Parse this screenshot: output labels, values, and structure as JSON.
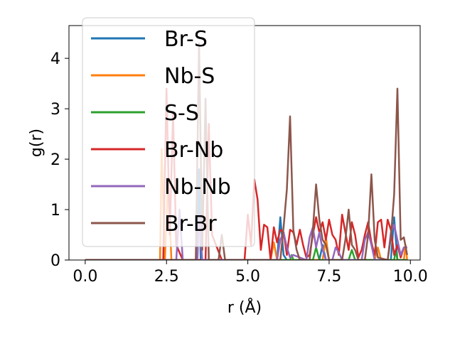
{
  "chart_data": {
    "type": "line",
    "xlabel": "r (Å)",
    "ylabel": "g(r)",
    "xlim": [
      -0.5,
      10.3
    ],
    "ylim": [
      0,
      4.65
    ],
    "xticks": [
      0.0,
      2.5,
      5.0,
      7.5,
      10.0
    ],
    "xtick_labels": [
      "0.0",
      "2.5",
      "5.0",
      "7.5",
      "10.0"
    ],
    "yticks": [
      0,
      1,
      2,
      3,
      4
    ],
    "ytick_labels": [
      "0",
      "1",
      "2",
      "3",
      "4"
    ],
    "grid": false,
    "legend_position": "top-left",
    "series": [
      {
        "name": "Br-S",
        "color": "#1f77b4",
        "points": [
          [
            0,
            0
          ],
          [
            3.45,
            0
          ],
          [
            3.5,
            1.8
          ],
          [
            3.55,
            0
          ],
          [
            5.9,
            0
          ],
          [
            6.0,
            0.85
          ],
          [
            6.1,
            0.1
          ],
          [
            6.2,
            0
          ],
          [
            7.2,
            0
          ],
          [
            7.3,
            0.3
          ],
          [
            7.4,
            0
          ],
          [
            9.4,
            0
          ],
          [
            9.5,
            0.85
          ],
          [
            9.6,
            0
          ],
          [
            9.9,
            0
          ]
        ]
      },
      {
        "name": "Nb-S",
        "color": "#ff7f0e",
        "points": [
          [
            0,
            0
          ],
          [
            2.3,
            0
          ],
          [
            2.35,
            2.2
          ],
          [
            2.45,
            0
          ],
          [
            2.55,
            1.6
          ],
          [
            2.65,
            0
          ],
          [
            5.7,
            0
          ],
          [
            5.8,
            0.35
          ],
          [
            5.9,
            0
          ],
          [
            7.3,
            0
          ],
          [
            7.4,
            0.45
          ],
          [
            7.5,
            0
          ],
          [
            8.9,
            0
          ],
          [
            9.0,
            0.25
          ],
          [
            9.1,
            0
          ],
          [
            9.8,
            0
          ],
          [
            9.85,
            0.3
          ],
          [
            9.9,
            0
          ]
        ]
      },
      {
        "name": "S-S",
        "color": "#2ca02c",
        "points": [
          [
            0,
            0
          ],
          [
            6.3,
            0
          ],
          [
            6.35,
            0.1
          ],
          [
            6.4,
            0
          ],
          [
            7.0,
            0
          ],
          [
            7.1,
            0.25
          ],
          [
            7.2,
            0
          ],
          [
            8.1,
            0
          ],
          [
            8.2,
            0.2
          ],
          [
            8.3,
            0
          ],
          [
            9.5,
            0
          ],
          [
            9.55,
            0.2
          ],
          [
            9.6,
            0
          ],
          [
            9.9,
            0
          ]
        ]
      },
      {
        "name": "Br-Nb",
        "color": "#d62728",
        "points": [
          [
            0,
            0
          ],
          [
            2.4,
            0
          ],
          [
            2.5,
            3.4
          ],
          [
            2.6,
            0.5
          ],
          [
            2.7,
            2.9
          ],
          [
            2.8,
            0.3
          ],
          [
            3.0,
            0
          ],
          [
            3.7,
            0
          ],
          [
            3.8,
            2.7
          ],
          [
            3.9,
            0.5
          ],
          [
            4.2,
            0
          ],
          [
            4.9,
            0
          ],
          [
            5.0,
            0.9
          ],
          [
            5.1,
            0.3
          ],
          [
            5.2,
            1.6
          ],
          [
            5.3,
            1.2
          ],
          [
            5.4,
            0.2
          ],
          [
            5.5,
            0.7
          ],
          [
            5.6,
            0.65
          ],
          [
            5.7,
            0
          ],
          [
            5.8,
            0.65
          ],
          [
            5.9,
            0.35
          ],
          [
            6.0,
            0.6
          ],
          [
            6.1,
            0.55
          ],
          [
            6.2,
            0.1
          ],
          [
            6.3,
            0.6
          ],
          [
            6.4,
            0.55
          ],
          [
            6.5,
            0.3
          ],
          [
            6.6,
            0.6
          ],
          [
            6.7,
            0.3
          ],
          [
            6.8,
            0.05
          ],
          [
            6.9,
            0.1
          ],
          [
            7.0,
            0.5
          ],
          [
            7.1,
            0.85
          ],
          [
            7.2,
            0.55
          ],
          [
            7.3,
            0.75
          ],
          [
            7.4,
            0.4
          ],
          [
            7.5,
            0.8
          ],
          [
            7.6,
            0.5
          ],
          [
            7.7,
            0.4
          ],
          [
            7.8,
            0.1
          ],
          [
            7.9,
            0.9
          ],
          [
            8.0,
            0.55
          ],
          [
            8.1,
            0.2
          ],
          [
            8.2,
            0.75
          ],
          [
            8.3,
            0.5
          ],
          [
            8.4,
            0.05
          ],
          [
            8.5,
            0.2
          ],
          [
            8.6,
            0.5
          ],
          [
            8.7,
            0.75
          ],
          [
            8.8,
            0.35
          ],
          [
            8.9,
            0.1
          ],
          [
            9.0,
            0.75
          ],
          [
            9.1,
            0.8
          ],
          [
            9.2,
            0.25
          ],
          [
            9.3,
            0.8
          ],
          [
            9.4,
            0.6
          ],
          [
            9.5,
            0.1
          ],
          [
            9.6,
            0.3
          ],
          [
            9.7,
            0.05
          ],
          [
            9.8,
            0.25
          ],
          [
            9.9,
            0.25
          ]
        ]
      },
      {
        "name": "Nb-Nb",
        "color": "#9467bd",
        "points": [
          [
            0,
            0
          ],
          [
            2.8,
            0
          ],
          [
            2.9,
            1.0
          ],
          [
            3.0,
            0
          ],
          [
            3.45,
            0
          ],
          [
            3.5,
            0.9
          ],
          [
            3.6,
            0
          ],
          [
            5.9,
            0
          ],
          [
            6.0,
            0.4
          ],
          [
            6.1,
            0.55
          ],
          [
            6.2,
            0.25
          ],
          [
            6.3,
            0.05
          ],
          [
            6.4,
            0.1
          ],
          [
            6.8,
            0
          ],
          [
            6.9,
            0.45
          ],
          [
            7.0,
            0.65
          ],
          [
            7.1,
            0.25
          ],
          [
            7.2,
            0.55
          ],
          [
            7.3,
            0.2
          ],
          [
            7.4,
            0
          ],
          [
            7.6,
            0
          ],
          [
            7.7,
            0.25
          ],
          [
            7.8,
            0.15
          ],
          [
            7.9,
            0
          ],
          [
            8.5,
            0
          ],
          [
            8.6,
            0.4
          ],
          [
            8.7,
            0.55
          ],
          [
            8.8,
            0.3
          ],
          [
            8.9,
            0
          ],
          [
            9.3,
            0
          ],
          [
            9.4,
            0.55
          ],
          [
            9.5,
            0.7
          ],
          [
            9.6,
            0.4
          ],
          [
            9.7,
            0.1
          ],
          [
            9.8,
            0.25
          ],
          [
            9.9,
            0.25
          ]
        ]
      },
      {
        "name": "Br-Br",
        "color": "#8c564b",
        "points": [
          [
            0,
            0
          ],
          [
            3.4,
            0
          ],
          [
            3.5,
            4.3
          ],
          [
            3.6,
            0.2
          ],
          [
            3.7,
            3.2
          ],
          [
            3.8,
            0
          ],
          [
            4.1,
            0
          ],
          [
            4.2,
            0.5
          ],
          [
            4.3,
            0
          ],
          [
            6.0,
            0
          ],
          [
            6.1,
            0.65
          ],
          [
            6.2,
            1.4
          ],
          [
            6.3,
            2.85
          ],
          [
            6.4,
            0.6
          ],
          [
            6.5,
            0.2
          ],
          [
            6.6,
            0
          ],
          [
            6.9,
            0
          ],
          [
            7.0,
            0.6
          ],
          [
            7.1,
            1.5
          ],
          [
            7.2,
            0.8
          ],
          [
            7.3,
            0.4
          ],
          [
            7.4,
            0.3
          ],
          [
            7.5,
            0
          ],
          [
            7.9,
            0
          ],
          [
            8.0,
            0.4
          ],
          [
            8.1,
            1.0
          ],
          [
            8.2,
            0.3
          ],
          [
            8.3,
            0.2
          ],
          [
            8.4,
            0
          ],
          [
            8.6,
            0
          ],
          [
            8.7,
            0.5
          ],
          [
            8.8,
            1.7
          ],
          [
            8.9,
            0.4
          ],
          [
            9.0,
            0.05
          ],
          [
            9.3,
            0
          ],
          [
            9.4,
            0.45
          ],
          [
            9.5,
            1.3
          ],
          [
            9.6,
            3.4
          ],
          [
            9.7,
            0.4
          ],
          [
            9.8,
            0.45
          ],
          [
            9.9,
            0.1
          ]
        ]
      }
    ]
  }
}
